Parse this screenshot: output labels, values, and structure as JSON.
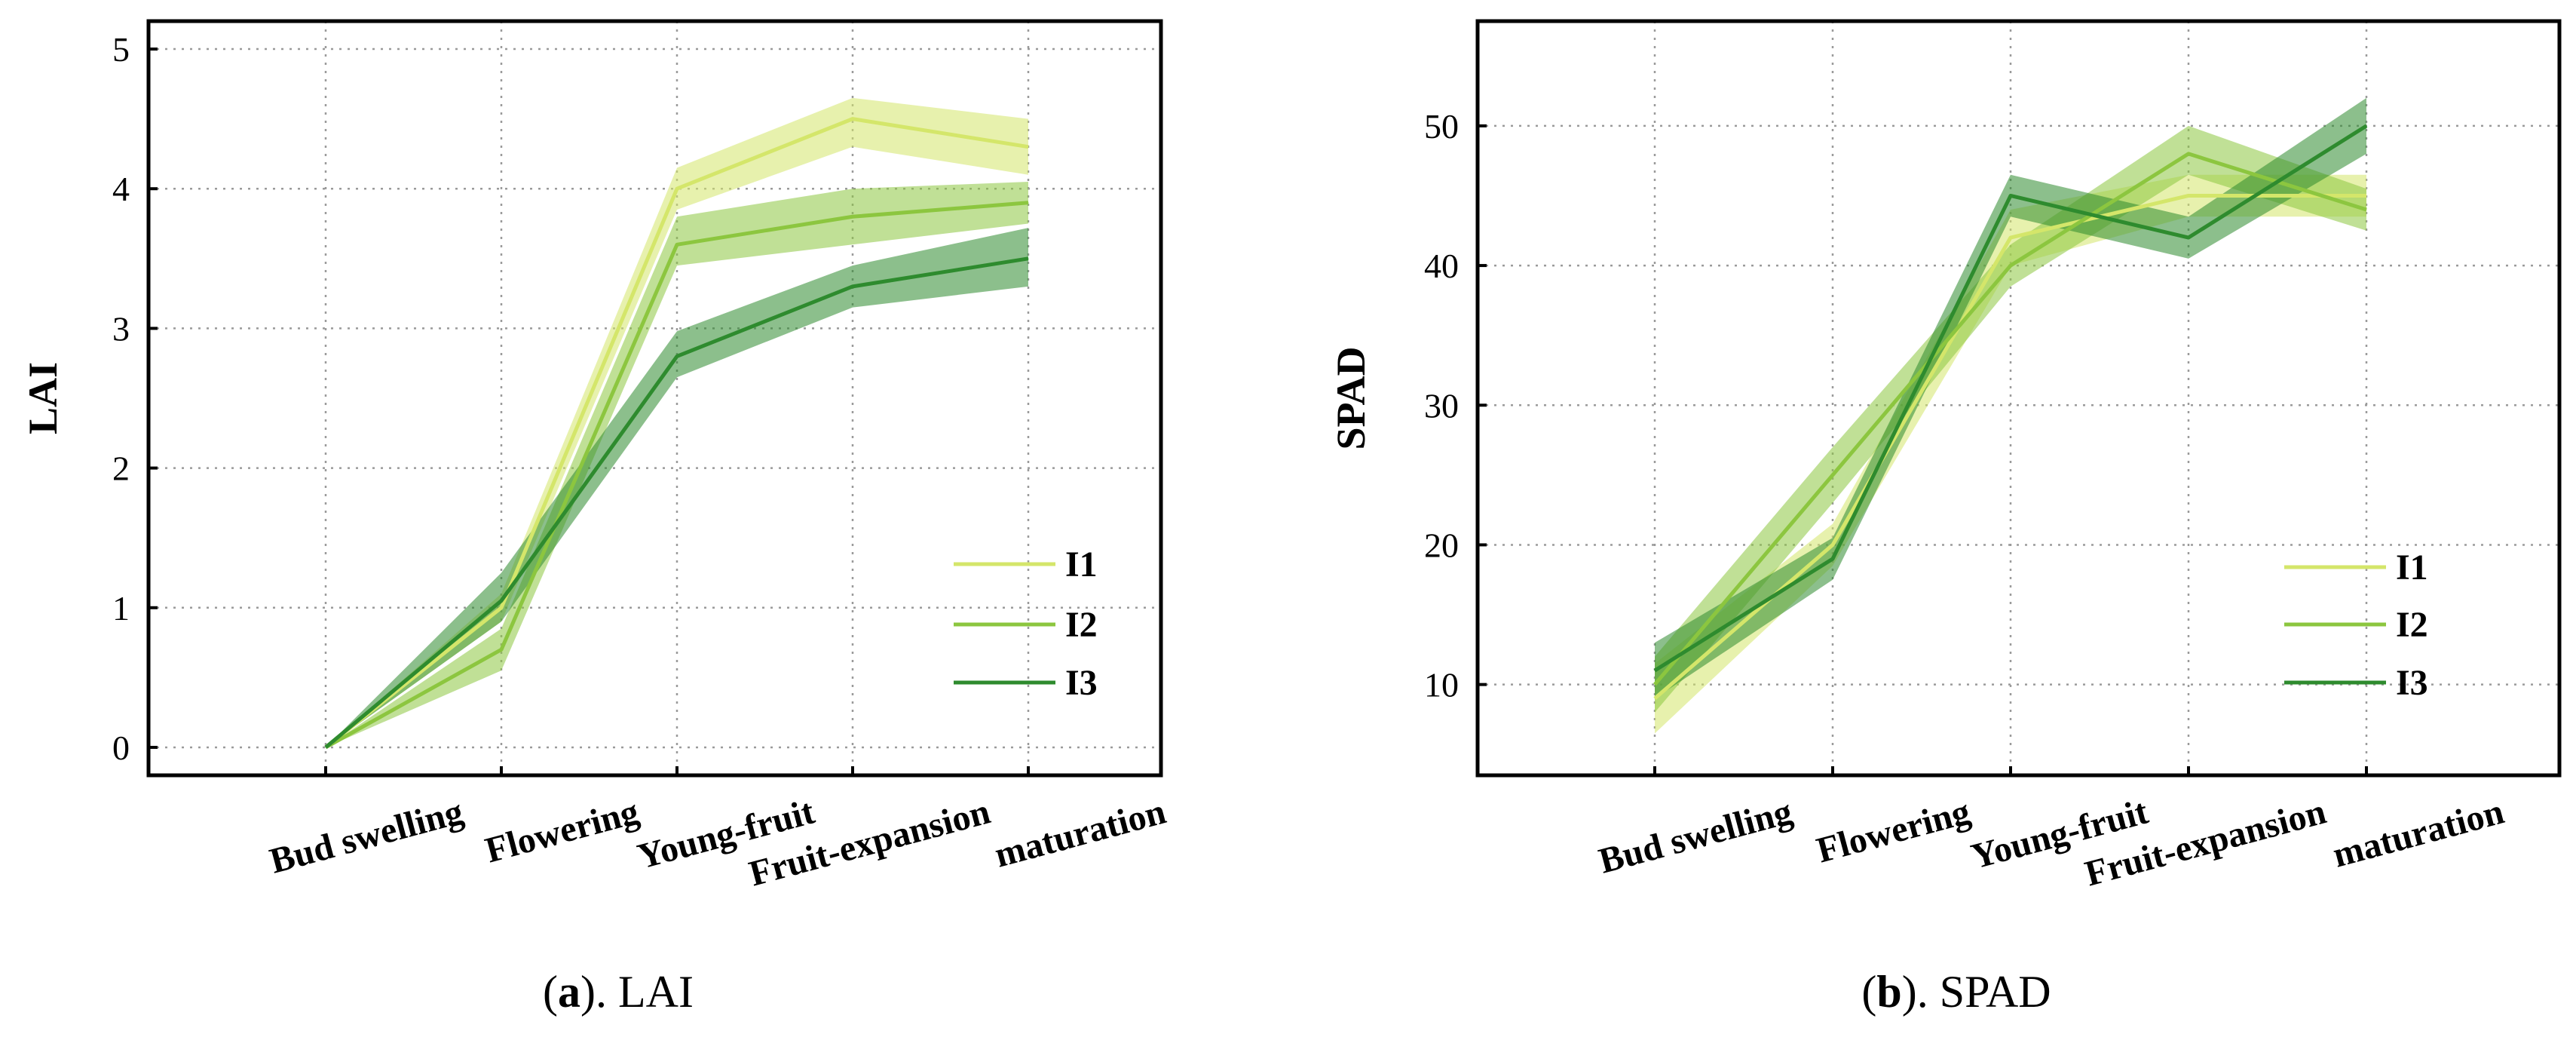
{
  "colors": {
    "I1": "#d4e66a",
    "I2": "#8cc63f",
    "I3": "#2e8b2e"
  },
  "chart_data": [
    {
      "type": "line",
      "panel": "a",
      "caption_letter": "a",
      "caption_text": "). LAI",
      "caption_open": "(",
      "ylabel": "LAI",
      "categories": [
        "Bud swelling",
        "Flowering",
        "Young-fruit",
        "Fruit-expansion",
        "maturation"
      ],
      "ylim": [
        -0.2,
        5.2
      ],
      "yticks": [
        "0",
        "1",
        "2",
        "3",
        "4",
        "5"
      ],
      "ytick_values": [
        0,
        1,
        2,
        3,
        4,
        5
      ],
      "grid": true,
      "legend_position": "lower-right",
      "series": [
        {
          "name": "I1",
          "values": [
            0,
            1.0,
            4.0,
            4.5,
            4.3
          ],
          "lower": [
            0,
            0.9,
            3.85,
            4.3,
            4.1
          ],
          "upper": [
            0,
            1.1,
            4.15,
            4.65,
            4.5
          ]
        },
        {
          "name": "I2",
          "values": [
            0,
            0.7,
            3.6,
            3.8,
            3.9
          ],
          "lower": [
            0,
            0.55,
            3.45,
            3.6,
            3.75
          ],
          "upper": [
            0,
            0.85,
            3.8,
            4.0,
            4.05
          ]
        },
        {
          "name": "I3",
          "values": [
            0,
            1.05,
            2.8,
            3.3,
            3.5
          ],
          "lower": [
            0,
            0.9,
            2.65,
            3.15,
            3.3
          ],
          "upper": [
            0,
            1.25,
            2.98,
            3.45,
            3.72
          ]
        }
      ]
    },
    {
      "type": "line",
      "panel": "b",
      "caption_letter": "b",
      "caption_text": "). SPAD",
      "caption_open": "(",
      "ylabel": "SPAD",
      "categories": [
        "Bud swelling",
        "Flowering",
        "Young-fruit",
        "Fruit-expansion",
        "maturation"
      ],
      "ylim": [
        3.5,
        57.5
      ],
      "yticks": [
        "10",
        "20",
        "30",
        "40",
        "50"
      ],
      "ytick_values": [
        10,
        20,
        30,
        40,
        50
      ],
      "grid": true,
      "legend_position": "lower-right",
      "series": [
        {
          "name": "I1",
          "values": [
            9,
            20,
            42,
            45,
            45
          ],
          "lower": [
            6.5,
            18.5,
            40,
            43.5,
            43.5
          ],
          "upper": [
            11.5,
            21.5,
            44,
            46.5,
            46.5
          ]
        },
        {
          "name": "I2",
          "values": [
            10,
            25,
            40,
            48,
            44
          ],
          "lower": [
            8,
            23,
            38.5,
            46.5,
            42.5
          ],
          "upper": [
            12,
            27,
            41.5,
            50,
            45.5
          ]
        },
        {
          "name": "I3",
          "values": [
            11,
            19,
            45,
            42,
            50
          ],
          "lower": [
            9,
            17.5,
            43.5,
            40.5,
            48
          ],
          "upper": [
            13,
            20.5,
            46.5,
            43.5,
            52
          ]
        }
      ]
    }
  ]
}
